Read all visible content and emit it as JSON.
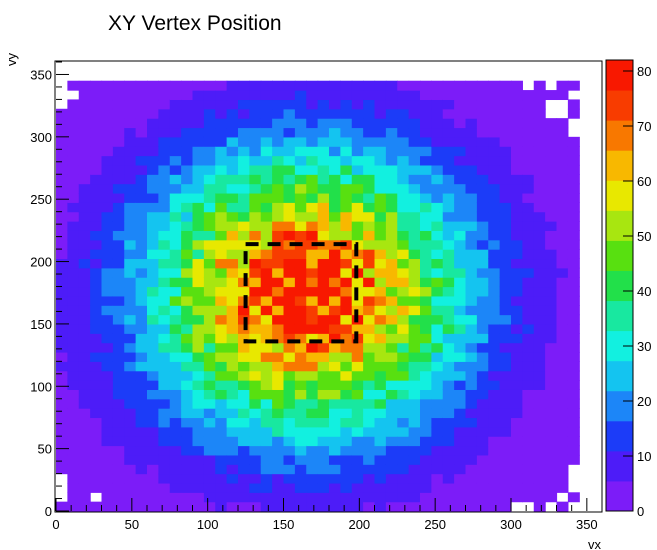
{
  "chart_data": {
    "type": "heatmap",
    "title": "XY Vertex Position",
    "xlabel": "vx",
    "ylabel": "vy",
    "xlim": [
      0,
      360
    ],
    "ylim": [
      0,
      360
    ],
    "bin_size": 7.5,
    "x_ticks": [
      0,
      50,
      100,
      150,
      200,
      250,
      300,
      350
    ],
    "y_ticks": [
      0,
      50,
      100,
      150,
      200,
      250,
      300,
      350
    ],
    "color_scale": {
      "min": 0,
      "max": 82,
      "ticks": [
        0,
        10,
        20,
        30,
        40,
        50,
        60,
        70,
        80
      ],
      "palette": [
        "#7c1cf8",
        "#4d1cf8",
        "#1c3cf8",
        "#1c86f8",
        "#14c4f0",
        "#12f0e0",
        "#18e8a0",
        "#22e04a",
        "#58e010",
        "#a8e610",
        "#e8e800",
        "#f8b800",
        "#f87800",
        "#f83c00",
        "#f81800"
      ]
    },
    "distribution": {
      "center_x": 165,
      "center_y": 175,
      "peak_value": 80,
      "sigma_x": 72,
      "sigma_y": 78,
      "x_extent": [
        0,
        345
      ],
      "y_extent": [
        0,
        345
      ]
    },
    "annotation": {
      "type": "dashed-rectangle",
      "x_range": [
        125,
        198
      ],
      "y_range": [
        136,
        214
      ],
      "color": "#000000"
    }
  }
}
